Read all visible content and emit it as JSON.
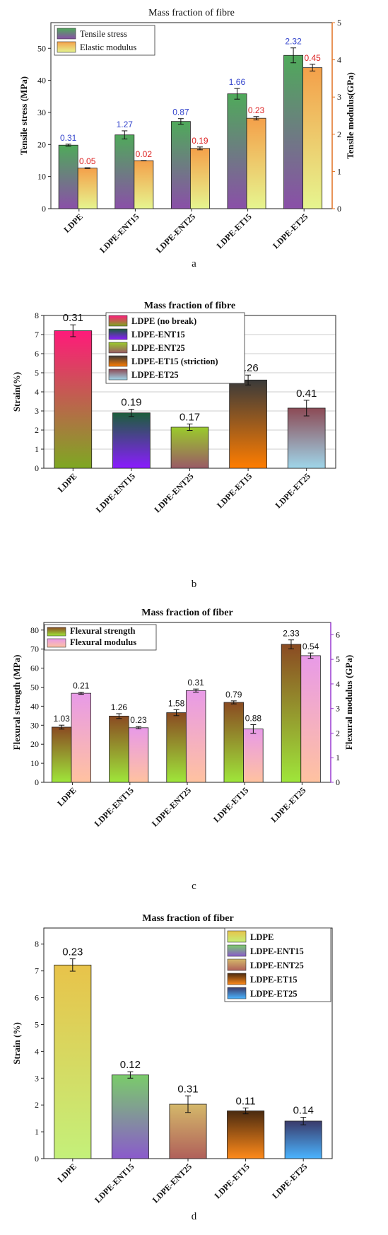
{
  "figures": [
    {
      "id": "a",
      "caption": "a",
      "title": "Mass fraction of fibre",
      "ylabel": "Tensile stress (MPa)",
      "y2label": "Tensile modulus(GPa)",
      "legend": [
        "Tensile stress",
        "Elastic modulus"
      ]
    },
    {
      "id": "b",
      "caption": "b",
      "title": "Mass fraction of fibre",
      "ylabel": "Strain(%)",
      "legend": [
        "LDPE (no break)",
        "LDPE-ENT15",
        "LDPE-ENT25",
        "LDPE-ET15 (striction)",
        "LDPE-ET25"
      ]
    },
    {
      "id": "c",
      "caption": "c",
      "title": "Mass fraction of fiber",
      "ylabel": "Flexural strength (MPa)",
      "y2label": "Flexural modulus (GPa)",
      "legend": [
        "Flexural strength",
        "Flexural modulus"
      ]
    },
    {
      "id": "d",
      "caption": "d",
      "title": "Mass fraction of fiber",
      "ylabel": "Strain (%)",
      "legend": [
        "LDPE",
        "LDPE-ENT15",
        "LDPE-ENT25",
        "LDPE-ET15",
        "LDPE-ET25"
      ]
    }
  ],
  "chart_data": [
    {
      "type": "bar",
      "title": "Mass fraction of fibre",
      "categories": [
        "LDPE",
        "LDPE-ENT15",
        "LDPE-ENT25",
        "LDPE-ET15",
        "LDPE-ET25"
      ],
      "ylabel": "Tensile stress (MPa)",
      "ylim": [
        0,
        58
      ],
      "yticks": [
        0,
        10,
        20,
        30,
        40,
        50
      ],
      "y2label": "Tensile modulus(GPa)",
      "y2lim": [
        0,
        5
      ],
      "y2ticks": [
        0,
        1,
        2,
        3,
        4,
        5
      ],
      "legend_position": "top-left",
      "series": [
        {
          "name": "Tensile stress",
          "axis": "left",
          "values": [
            19.8,
            23.0,
            27.2,
            35.8,
            47.8
          ],
          "errors": [
            0.31,
            1.27,
            0.87,
            1.66,
            2.32
          ],
          "labels": [
            "0.31",
            "1.27",
            "0.87",
            "1.66",
            "2.32"
          ],
          "label_color": "#3344cc",
          "top": "#4faa5a",
          "bottom": "#8a4fa8"
        },
        {
          "name": "Elastic modulus",
          "axis": "right",
          "values": [
            1.09,
            1.29,
            1.62,
            2.43,
            3.79
          ],
          "errors": [
            0.05,
            0.02,
            0.19,
            0.23,
            0.45
          ],
          "labels": [
            "0.05",
            "0.02",
            "0.19",
            "0.23",
            "0.45"
          ],
          "label_color": "#dd2222",
          "top": "#f4a04a",
          "bottom": "#e6f58f"
        }
      ]
    },
    {
      "type": "bar",
      "title": "Mass fraction of fibre",
      "categories": [
        "LDPE",
        "LDPE-ENT15",
        "LDPE-ENT25",
        "LDPE-ET15",
        "LDPE-ET25"
      ],
      "ylabel": "Strain(%)",
      "ylim": [
        0,
        8
      ],
      "yticks": [
        0,
        1,
        2,
        3,
        4,
        5,
        6,
        7,
        8
      ],
      "legend_position": "top-right",
      "values": [
        7.2,
        2.9,
        2.15,
        4.62,
        3.15
      ],
      "errors": [
        0.31,
        0.19,
        0.17,
        0.26,
        0.41
      ],
      "labels": [
        "0.31",
        "0.19",
        "0.17",
        "0.26",
        "0.41"
      ],
      "label_color": "#111111",
      "bar_colors": [
        {
          "top": "#ff1a7a",
          "bottom": "#7ea822"
        },
        {
          "top": "#1b5e3b",
          "bottom": "#8a1cff"
        },
        {
          "top": "#9acb2b",
          "bottom": "#9a5a66"
        },
        {
          "top": "#3a3a3a",
          "bottom": "#ff7d00"
        },
        {
          "top": "#8c4a55",
          "bottom": "#9fd6ea"
        }
      ]
    },
    {
      "type": "bar",
      "title": "Mass fraction of fiber",
      "categories": [
        "LDPE",
        "LDPE-ENT15",
        "LDPE-ENT25",
        "LDPE-ET15",
        "LDPE-ET25"
      ],
      "ylabel": "Flexural strength (MPa)",
      "ylim": [
        0,
        84
      ],
      "yticks": [
        0,
        10,
        20,
        30,
        40,
        50,
        60,
        70,
        80
      ],
      "y2label": "Flexural modulus (GPa)",
      "y2lim": [
        0,
        6.5
      ],
      "y2ticks": [
        0,
        1,
        2,
        3,
        4,
        5,
        6
      ],
      "legend_position": "top-left",
      "series": [
        {
          "name": "Flexural strength",
          "axis": "left",
          "values": [
            29,
            34.8,
            36.6,
            42,
            72.5
          ],
          "errors": [
            1.03,
            1.26,
            1.58,
            0.79,
            2.33
          ],
          "labels": [
            "1.03",
            "1.26",
            "1.58",
            "0.79",
            "2.33"
          ],
          "label_color": "#111111",
          "top": "#8a4a22",
          "bottom": "#9fe63a"
        },
        {
          "name": "Flexural modulus",
          "axis": "right",
          "values": [
            3.62,
            2.22,
            3.73,
            2.17,
            5.15
          ],
          "errors": [
            0.21,
            0.23,
            0.31,
            0.88,
            0.54
          ],
          "labels": [
            "0.21",
            "0.23",
            "0.31",
            "0.88",
            "0.54"
          ],
          "label_color": "#111111",
          "top": "#e89ae8",
          "bottom": "#ffc2a0"
        }
      ]
    },
    {
      "type": "bar",
      "title": "Mass fraction of fiber",
      "categories": [
        "LDPE",
        "LDPE-ENT15",
        "LDPE-ENT25",
        "LDPE-ET15",
        "LDPE-ET25"
      ],
      "ylabel": "Strain (%)",
      "ylim": [
        0,
        8.6
      ],
      "yticks": [
        0,
        1,
        2,
        3,
        4,
        5,
        6,
        7,
        8
      ],
      "legend_position": "top-right",
      "values": [
        7.22,
        3.12,
        2.03,
        1.78,
        1.4
      ],
      "errors": [
        0.23,
        0.12,
        0.31,
        0.11,
        0.14
      ],
      "labels": [
        "0.23",
        "0.12",
        "0.31",
        "0.11",
        "0.14"
      ],
      "label_color": "#111111",
      "bar_colors": [
        {
          "top": "#e8c34a",
          "bottom": "#c4f07a"
        },
        {
          "top": "#7acc6a",
          "bottom": "#8a5acc"
        },
        {
          "top": "#d4b86a",
          "bottom": "#b0605a"
        },
        {
          "top": "#4a2a10",
          "bottom": "#ff8a1a"
        },
        {
          "top": "#3a3a6a",
          "bottom": "#4ab4ff"
        }
      ]
    }
  ]
}
